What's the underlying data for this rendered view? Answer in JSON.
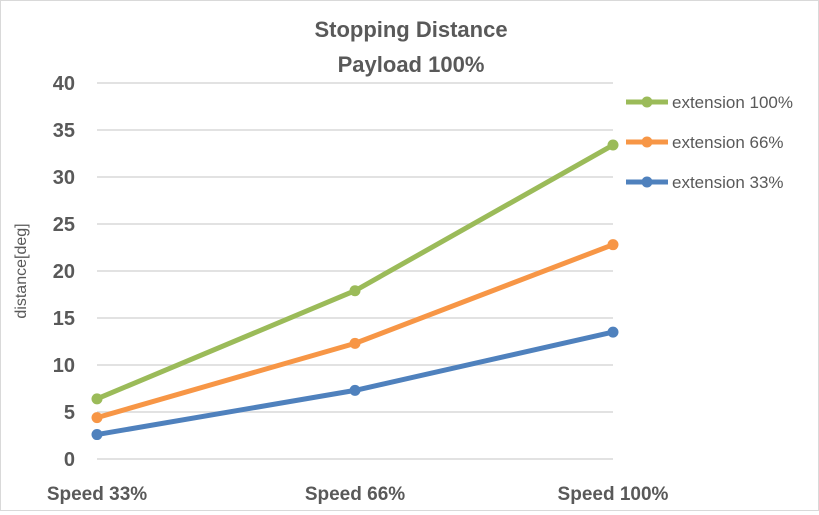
{
  "chart_data": {
    "type": "line",
    "title": "Stopping Distance",
    "subtitle": "Payload 100%",
    "xlabel": "",
    "ylabel": "distance[deg]",
    "ylim": [
      0,
      40
    ],
    "yticks": [
      0,
      5,
      10,
      15,
      20,
      25,
      30,
      35,
      40
    ],
    "categories": [
      "Speed 33%",
      "Speed 66%",
      "Speed 100%"
    ],
    "grid": true,
    "legend_position": "right",
    "series": [
      {
        "name": "extension 100%",
        "color": "#9bbb59",
        "values": [
          6.4,
          17.9,
          33.4
        ]
      },
      {
        "name": "extension 66%",
        "color": "#f79646",
        "values": [
          4.4,
          12.3,
          22.8
        ]
      },
      {
        "name": "extension 33%",
        "color": "#4f81bd",
        "values": [
          2.6,
          7.3,
          13.5
        ]
      }
    ]
  }
}
